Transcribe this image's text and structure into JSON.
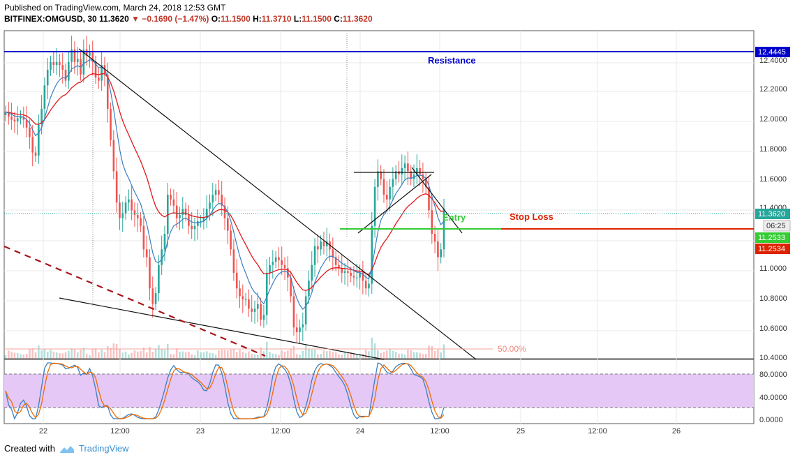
{
  "header": {
    "published": "Published on TradingView.com, March 24, 2018 12:53 GMT",
    "symbol": "BITFINEX:OMGUSD, 30",
    "last": "11.3620",
    "change": "▼ −0.1690 (−1.47%)",
    "o_label": "O:",
    "o_val": "11.1500",
    "h_label": "H:",
    "h_val": "11.3710",
    "l_label": "L:",
    "l_val": "11.1500",
    "c_label": "C:",
    "c_val": "11.3620"
  },
  "annotations": {
    "resistance": "Resistance",
    "entry": "Entry",
    "stop_loss": "Stop Loss",
    "fib": "50.00%"
  },
  "price_axis": {
    "ticks": [
      "12.4000",
      "12.2000",
      "12.0000",
      "11.8000",
      "11.6000",
      "11.4000",
      "11.0000",
      "10.8000",
      "10.6000",
      "10.4000"
    ],
    "badges": {
      "resistance": "12.4445",
      "last": "11.3620",
      "countdown": "06:25",
      "entry": "11.2533",
      "stop": "11.2534"
    }
  },
  "osc_axis": {
    "ticks": [
      "80.0000",
      "40.0000",
      "0.0000"
    ]
  },
  "time_axis": {
    "ticks": [
      "22",
      "12:00",
      "23",
      "12:00",
      "24",
      "12:00",
      "25",
      "12:00",
      "26"
    ]
  },
  "footer": {
    "created_with": "Created with",
    "brand": "TradingView"
  },
  "colors": {
    "up": "#26a69a",
    "down": "#ef5350",
    "resistance": "#0000cc",
    "entry": "#33cc33",
    "stop": "#dd2200",
    "ema_fast": "#3a7fc0",
    "ema_slow": "#e0191b",
    "stoch_k": "#3a7fc0",
    "stoch_d": "#ef6c00",
    "stoch_band": "#e5c8f5"
  },
  "chart_data": {
    "type": "candlestick",
    "symbol": "OMGUSD",
    "timeframe": "30",
    "ylim": [
      10.4,
      12.5
    ],
    "x": [
      "22",
      "12:00",
      "23",
      "12:00",
      "24",
      "12:00",
      "25",
      "12:00",
      "26"
    ],
    "levels": {
      "resistance": 12.4445,
      "entry": 11.2533,
      "stop_loss": 11.2534,
      "last_price": 11.362
    },
    "closes": [
      11.98,
      11.95,
      11.93,
      11.92,
      11.94,
      11.95,
      11.93,
      11.88,
      11.82,
      11.72,
      11.7,
      11.9,
      12.0,
      12.15,
      12.25,
      12.3,
      12.28,
      12.3,
      12.28,
      12.25,
      12.18,
      12.3,
      12.38,
      12.3,
      12.32,
      12.22,
      12.38,
      12.34,
      12.36,
      12.3,
      12.2,
      12.18,
      12.28,
      12.22,
      12.0,
      11.8,
      11.6,
      11.4,
      11.3,
      11.33,
      11.4,
      11.42,
      11.35,
      11.32,
      11.3,
      11.25,
      11.1,
      11.05,
      10.85,
      10.75,
      10.82,
      11.0,
      11.1,
      11.2,
      11.45,
      11.42,
      11.38,
      11.3,
      11.32,
      11.36,
      11.32,
      11.25,
      11.23,
      11.25,
      11.28,
      11.28,
      11.3,
      11.36,
      11.4,
      11.45,
      11.48,
      11.45,
      11.38,
      11.3,
      11.22,
      11.1,
      10.95,
      10.85,
      10.8,
      10.78,
      10.78,
      10.72,
      10.7,
      10.72,
      10.75,
      10.65,
      10.68,
      10.95,
      11.0,
      11.02,
      11.05,
      11.03,
      11.0,
      10.98,
      10.92,
      10.8,
      10.6,
      10.57,
      10.6,
      10.62,
      10.8,
      10.9,
      11.0,
      11.12,
      11.1,
      11.15,
      11.12,
      11.15,
      11.1,
      11.05,
      11.0,
      10.98,
      10.95,
      10.96,
      10.95,
      10.93,
      10.92,
      10.92,
      10.95,
      10.9,
      10.85,
      10.88,
      11.25,
      11.5,
      11.6,
      11.55,
      11.45,
      11.42,
      11.5,
      11.55,
      11.6,
      11.58,
      11.62,
      11.65,
      11.6,
      11.55,
      11.58,
      11.62,
      11.58,
      11.55,
      11.5,
      11.35,
      11.2,
      11.15,
      11.05,
      11.1,
      11.36
    ],
    "fib_level": "50.00%"
  }
}
